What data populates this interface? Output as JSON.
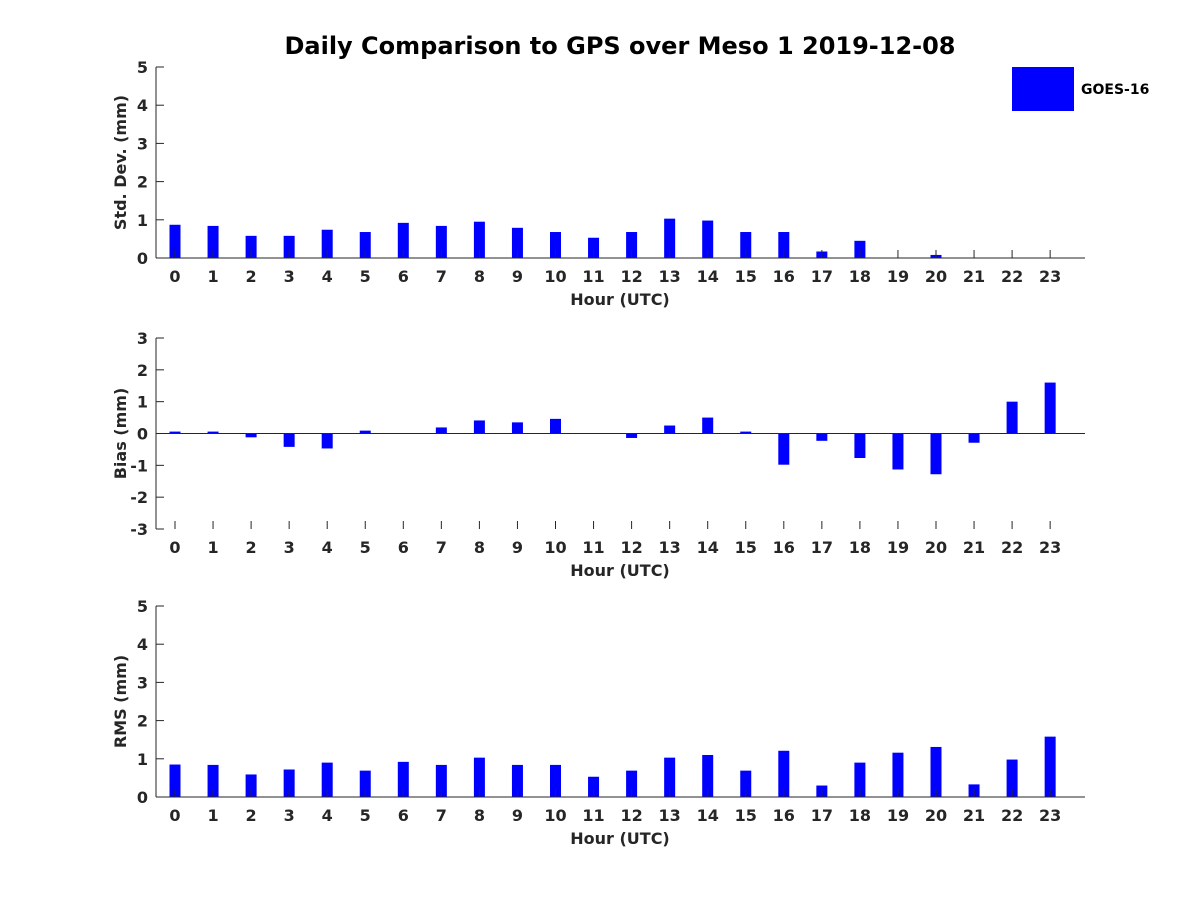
{
  "title": "Daily Comparison to GPS over Meso 1 2019-12-08",
  "legend": {
    "label": "GOES-16",
    "color": "#0000ff"
  },
  "chart_data": [
    {
      "type": "bar",
      "title": "Daily Comparison to GPS over Meso 1 2019-12-08",
      "xlabel": "Hour (UTC)",
      "ylabel": "Std. Dev. (mm)",
      "ylim": [
        0,
        5
      ],
      "yticks": [
        0,
        1,
        2,
        3,
        4,
        5
      ],
      "categories": [
        "0",
        "1",
        "2",
        "3",
        "4",
        "5",
        "6",
        "7",
        "8",
        "9",
        "10",
        "11",
        "12",
        "13",
        "14",
        "15",
        "16",
        "17",
        "18",
        "19",
        "20",
        "21",
        "22",
        "23"
      ],
      "series": [
        {
          "name": "GOES-16",
          "values": [
            0.87,
            0.84,
            0.58,
            0.58,
            0.74,
            0.68,
            0.92,
            0.84,
            0.95,
            0.79,
            0.68,
            0.53,
            0.68,
            1.03,
            0.98,
            0.68,
            0.68,
            0.17,
            0.45,
            0,
            0.08,
            0,
            0,
            0
          ]
        }
      ]
    },
    {
      "type": "bar",
      "xlabel": "Hour (UTC)",
      "ylabel": "Bias (mm)",
      "ylim": [
        -3,
        3
      ],
      "yticks": [
        -3,
        -2,
        -1,
        0,
        1,
        2,
        3
      ],
      "categories": [
        "0",
        "1",
        "2",
        "3",
        "4",
        "5",
        "6",
        "7",
        "8",
        "9",
        "10",
        "11",
        "12",
        "13",
        "14",
        "15",
        "16",
        "17",
        "18",
        "19",
        "20",
        "21",
        "22",
        "23"
      ],
      "series": [
        {
          "name": "GOES-16",
          "values": [
            0.06,
            0.06,
            -0.12,
            -0.42,
            -0.47,
            0.09,
            0,
            0.19,
            0.41,
            0.35,
            0.46,
            0,
            -0.14,
            0.25,
            0.5,
            0.06,
            -0.98,
            -0.23,
            -0.77,
            -1.13,
            -1.28,
            -0.29,
            1,
            1.6
          ]
        }
      ]
    },
    {
      "type": "bar",
      "xlabel": "Hour (UTC)",
      "ylabel": "RMS (mm)",
      "ylim": [
        0,
        5
      ],
      "yticks": [
        0,
        1,
        2,
        3,
        4,
        5
      ],
      "categories": [
        "0",
        "1",
        "2",
        "3",
        "4",
        "5",
        "6",
        "7",
        "8",
        "9",
        "10",
        "11",
        "12",
        "13",
        "14",
        "15",
        "16",
        "17",
        "18",
        "19",
        "20",
        "21",
        "22",
        "23"
      ],
      "series": [
        {
          "name": "GOES-16",
          "values": [
            0.85,
            0.84,
            0.59,
            0.72,
            0.9,
            0.69,
            0.92,
            0.84,
            1.03,
            0.84,
            0.84,
            0.53,
            0.69,
            1.03,
            1.1,
            0.69,
            1.21,
            0.3,
            0.9,
            1.16,
            1.31,
            0.33,
            0.98,
            1.58
          ]
        }
      ]
    }
  ]
}
